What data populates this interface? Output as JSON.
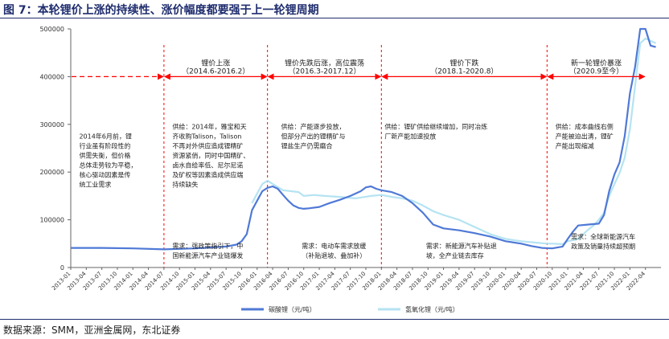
{
  "figure_title": "图 7：本轮锂价上涨的持续性、涨价幅度都要强于上一轮锂周期",
  "source_note": "数据来源：SMM，亚洲金属网，东北证券",
  "colors": {
    "title": "#1f2d6e",
    "carbonate": "#4f79d6",
    "hydroxide": "#b5e3f2",
    "arrow": "#ff0000",
    "divider": "#ff0000"
  },
  "chart_data": {
    "type": "line",
    "xlabel": "",
    "ylabel": "",
    "ylim": [
      0,
      500000
    ],
    "y_ticks": [
      0,
      100000,
      200000,
      300000,
      400000,
      500000
    ],
    "y_tick_labels": [
      "0",
      "100000",
      "200000",
      "300000",
      "400000",
      "500000"
    ],
    "x_tick_labels": [
      "2013-01",
      "2013-04",
      "2013-07",
      "2013-10",
      "2014-01",
      "2014-04",
      "2014-07",
      "2014-10",
      "2015-01",
      "2015-04",
      "2015-07",
      "2015-10",
      "2016-01",
      "2016-04",
      "2016-07",
      "2016-10",
      "2017-01",
      "2017-04",
      "2017-07",
      "2017-10",
      "2018-01",
      "2018-04",
      "2018-07",
      "2018-10",
      "2019-01",
      "2019-04",
      "2019-07",
      "2019-10",
      "2020-01",
      "2020-04",
      "2020-07",
      "2020-10",
      "2021-01",
      "2021-04",
      "2021-07",
      "2021-10",
      "2022-01",
      "2022-04"
    ],
    "grid": false,
    "legend_position": "bottom",
    "series": [
      {
        "name": "碳酸锂（元/吨）",
        "color": "#4f79d6",
        "points": [
          [
            "2013-01",
            41000
          ],
          [
            "2013-07",
            41000
          ],
          [
            "2014-01",
            40000
          ],
          [
            "2014-07",
            38000
          ],
          [
            "2015-01",
            40000
          ],
          [
            "2015-04",
            42000
          ],
          [
            "2015-07",
            44000
          ],
          [
            "2015-09",
            48000
          ],
          [
            "2015-10",
            55000
          ],
          [
            "2015-11",
            70000
          ],
          [
            "2015-12",
            120000
          ],
          [
            "2016-01",
            140000
          ],
          [
            "2016-02",
            160000
          ],
          [
            "2016-03",
            167000
          ],
          [
            "2016-04",
            170000
          ],
          [
            "2016-05",
            165000
          ],
          [
            "2016-06",
            152000
          ],
          [
            "2016-07",
            140000
          ],
          [
            "2016-08",
            130000
          ],
          [
            "2016-09",
            125000
          ],
          [
            "2016-10",
            123000
          ],
          [
            "2016-11",
            124000
          ],
          [
            "2017-01",
            127000
          ],
          [
            "2017-03",
            135000
          ],
          [
            "2017-05",
            142000
          ],
          [
            "2017-07",
            150000
          ],
          [
            "2017-09",
            160000
          ],
          [
            "2017-10",
            168000
          ],
          [
            "2017-11",
            170000
          ],
          [
            "2017-12",
            165000
          ],
          [
            "2018-01",
            162000
          ],
          [
            "2018-03",
            158000
          ],
          [
            "2018-05",
            150000
          ],
          [
            "2018-07",
            135000
          ],
          [
            "2018-09",
            115000
          ],
          [
            "2018-11",
            90000
          ],
          [
            "2019-01",
            82000
          ],
          [
            "2019-04",
            78000
          ],
          [
            "2019-07",
            72000
          ],
          [
            "2019-10",
            65000
          ],
          [
            "2020-01",
            55000
          ],
          [
            "2020-04",
            50000
          ],
          [
            "2020-06",
            45000
          ],
          [
            "2020-08",
            41000
          ],
          [
            "2020-10",
            40000
          ],
          [
            "2020-12",
            44000
          ],
          [
            "2021-01",
            60000
          ],
          [
            "2021-02",
            75000
          ],
          [
            "2021-03",
            88000
          ],
          [
            "2021-05",
            90000
          ],
          [
            "2021-07",
            92000
          ],
          [
            "2021-08",
            110000
          ],
          [
            "2021-09",
            160000
          ],
          [
            "2021-10",
            195000
          ],
          [
            "2021-11",
            220000
          ],
          [
            "2021-12",
            275000
          ],
          [
            "2022-01",
            365000
          ],
          [
            "2022-02",
            420000
          ],
          [
            "2022-03",
            500000
          ],
          [
            "2022-04",
            500000
          ],
          [
            "2022-05",
            465000
          ],
          [
            "2022-06",
            462000
          ]
        ]
      },
      {
        "name": "氢氧化锂（元/吨）",
        "color": "#b5e3f2",
        "points": [
          [
            "2015-12",
            135000
          ],
          [
            "2016-01",
            155000
          ],
          [
            "2016-02",
            175000
          ],
          [
            "2016-03",
            182000
          ],
          [
            "2016-04",
            175000
          ],
          [
            "2016-06",
            162000
          ],
          [
            "2016-09",
            158000
          ],
          [
            "2016-10",
            150000
          ],
          [
            "2016-12",
            152000
          ],
          [
            "2017-02",
            150000
          ],
          [
            "2017-05",
            148000
          ],
          [
            "2017-08",
            145000
          ],
          [
            "2017-11",
            150000
          ],
          [
            "2018-01",
            152000
          ],
          [
            "2018-03",
            148000
          ],
          [
            "2018-05",
            145000
          ],
          [
            "2018-07",
            140000
          ],
          [
            "2018-09",
            130000
          ],
          [
            "2018-11",
            118000
          ],
          [
            "2019-01",
            110000
          ],
          [
            "2019-04",
            100000
          ],
          [
            "2019-07",
            85000
          ],
          [
            "2019-10",
            70000
          ],
          [
            "2020-01",
            60000
          ],
          [
            "2020-04",
            55000
          ],
          [
            "2020-07",
            52000
          ],
          [
            "2020-09",
            50000
          ],
          [
            "2020-10",
            50000
          ],
          [
            "2020-12",
            49000
          ],
          [
            "2021-01",
            55000
          ],
          [
            "2021-03",
            60000
          ],
          [
            "2021-05",
            80000
          ],
          [
            "2021-06",
            88000
          ],
          [
            "2021-07",
            100000
          ],
          [
            "2021-08",
            115000
          ],
          [
            "2021-09",
            150000
          ],
          [
            "2021-10",
            175000
          ],
          [
            "2021-11",
            198000
          ],
          [
            "2021-12",
            230000
          ],
          [
            "2022-01",
            290000
          ],
          [
            "2022-02",
            380000
          ],
          [
            "2022-03",
            470000
          ],
          [
            "2022-04",
            480000
          ],
          [
            "2022-05",
            475000
          ],
          [
            "2022-06",
            470000
          ]
        ]
      }
    ],
    "dividers": [
      "2014-07",
      "2016-03",
      "2018-01",
      "2020-09"
    ],
    "phases": [
      {
        "title": "",
        "range": "",
        "from": "2013-01",
        "to": "2014-07",
        "dashed": true,
        "y": 400000
      },
      {
        "title": "锂价上涨",
        "range": "（2014.6-2016.2）",
        "from": "2014-07",
        "to": "2016-03",
        "dashed": false,
        "y": 400000
      },
      {
        "title": "锂价先跌后涨，高位震荡",
        "range": "（2016.3-2017.12）",
        "from": "2016-03",
        "to": "2018-01",
        "dashed": false,
        "y": 400000
      },
      {
        "title": "锂价下跌",
        "range": "（2018.1-2020.8）",
        "from": "2018-01",
        "to": "2020-09",
        "dashed": false,
        "y": 400000
      },
      {
        "title": "新一轮锂价暴涨",
        "range": "（2020.9至今）",
        "from": "2020-09",
        "to": "2022-04",
        "dashed": false,
        "y": 400000
      }
    ],
    "annotations": [
      {
        "at": "2013-02",
        "y": 270000,
        "lines": [
          "2014年6月前，锂",
          "行业虽有阶段性的",
          "供需失衡，但价格",
          "总体走势较为平稳，",
          "核心驱动因素是传",
          "统工业需求"
        ]
      },
      {
        "at": "2014-08",
        "y": 290000,
        "lines": [
          "供给：2014年，雅宝和天",
          "齐收购Talison，Talison",
          "不再对外供应造成锂精矿",
          "资源紧俏，同时中国精矿、",
          "卤水自给率低、尼尔尼诺",
          "及矿权等因素造成供应端",
          "持续缺失"
        ]
      },
      {
        "at": "2016-05",
        "y": 290000,
        "lines": [
          "供给：产能逐步投放，",
          "但部分产出的锂精矿与",
          "锂盐生产仍需磨合"
        ]
      },
      {
        "at": "2018-01",
        "y": 290000,
        "lines": [
          "供给：锂矿供给继续增加，同时冶炼",
          "厂新产能加速投放"
        ]
      },
      {
        "at": "2020-10",
        "y": 290000,
        "lines": [
          "供给：成本曲线右侧",
          "产能被迫出清，锂矿",
          "产能出现缩减"
        ]
      },
      {
        "at": "2014-08",
        "y": 40000,
        "lines": [
          "需求：强政策指引下，中",
          "国新能源汽车产业链爆发"
        ]
      },
      {
        "at": "2016-09",
        "y": 40000,
        "lines": [
          "需求：电动车需求放缓",
          "（补贴退坡、叠加补）"
        ]
      },
      {
        "at": "2018-09",
        "y": 40000,
        "lines": [
          "需求：新能源汽车补贴退",
          "坡，全产业链去库存"
        ]
      },
      {
        "at": "2021-01",
        "y": 60000,
        "lines": [
          "需求：全球新能源汽车",
          "政策及销量持续超预期"
        ]
      }
    ]
  }
}
